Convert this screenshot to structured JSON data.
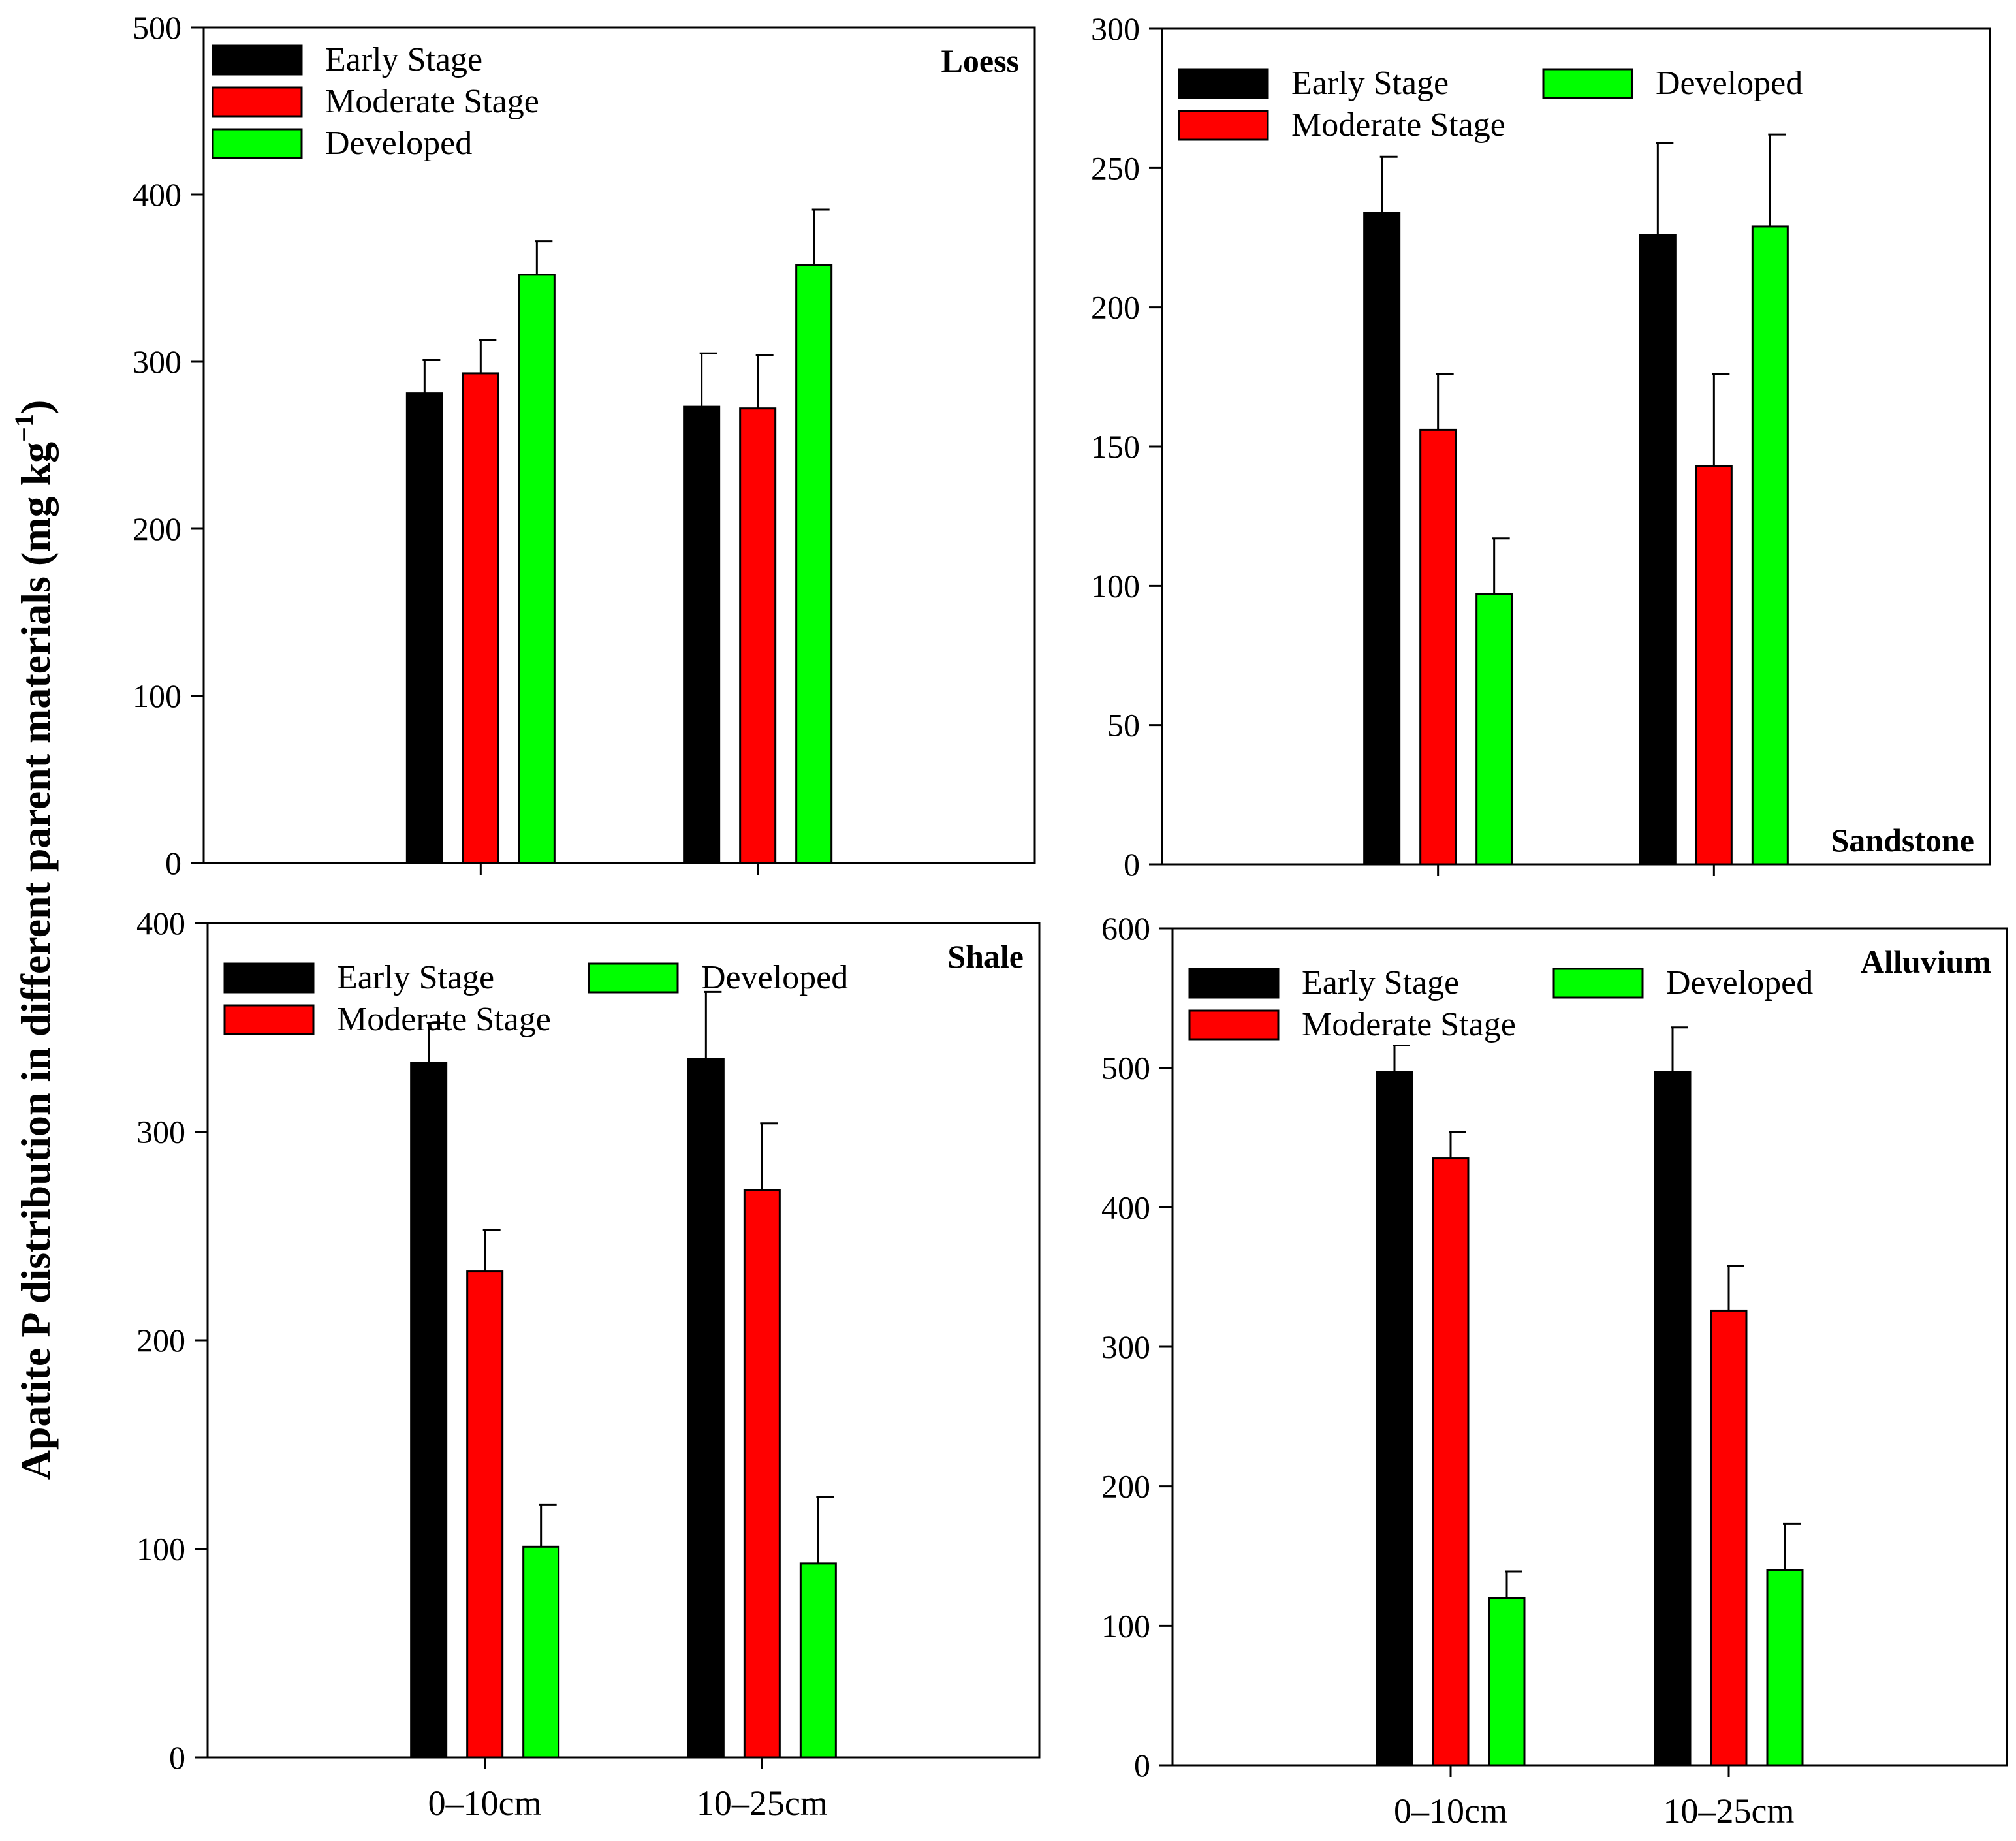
{
  "figure": {
    "y_axis_title": "Apatite P distribution in different parent materials (mg kg",
    "y_axis_title_sup": "−1",
    "y_axis_title_close": ")"
  },
  "chart_data": [
    {
      "type": "bar",
      "title": "Loess",
      "title_position": "top-right",
      "categories": [
        "0–10cm",
        "10–25cm"
      ],
      "show_category_labels": false,
      "ylim": [
        0,
        500
      ],
      "yticks": [
        0,
        100,
        200,
        300,
        400,
        500
      ],
      "series": [
        {
          "name": "Early Stage",
          "color": "#000000",
          "values": [
            281,
            273
          ],
          "errors": [
            20,
            32
          ]
        },
        {
          "name": "Moderate Stage",
          "color": "#ff0000",
          "values": [
            293,
            272
          ],
          "errors": [
            20,
            32
          ]
        },
        {
          "name": "Developed",
          "color": "#00ff00",
          "values": [
            352,
            358
          ],
          "errors": [
            20,
            33
          ]
        }
      ],
      "legend": {
        "layout": "column"
      }
    },
    {
      "type": "bar",
      "title": "Sandstone",
      "title_position": "bottom-right",
      "categories": [
        "0–10cm",
        "10–25cm"
      ],
      "show_category_labels": false,
      "ylim": [
        0,
        300
      ],
      "yticks": [
        0,
        50,
        100,
        150,
        200,
        250,
        300
      ],
      "series": [
        {
          "name": "Early Stage",
          "color": "#000000",
          "values": [
            234,
            226
          ],
          "errors": [
            20,
            33
          ]
        },
        {
          "name": "Moderate Stage",
          "color": "#ff0000",
          "values": [
            156,
            143
          ],
          "errors": [
            20,
            33
          ]
        },
        {
          "name": "Developed",
          "color": "#00ff00",
          "values": [
            97,
            229
          ],
          "errors": [
            20,
            33
          ]
        }
      ],
      "legend": {
        "layout": "two-column"
      }
    },
    {
      "type": "bar",
      "title": "Shale",
      "title_position": "top-right",
      "categories": [
        "0–10cm",
        "10–25cm"
      ],
      "show_category_labels": true,
      "ylim": [
        0,
        400
      ],
      "yticks": [
        0,
        100,
        200,
        300,
        400
      ],
      "series": [
        {
          "name": "Early Stage",
          "color": "#000000",
          "values": [
            333,
            335
          ],
          "errors": [
            19,
            32
          ]
        },
        {
          "name": "Moderate Stage",
          "color": "#ff0000",
          "values": [
            233,
            272
          ],
          "errors": [
            20,
            32
          ]
        },
        {
          "name": "Developed",
          "color": "#00ff00",
          "values": [
            101,
            93
          ],
          "errors": [
            20,
            32
          ]
        }
      ],
      "legend": {
        "layout": "two-column"
      }
    },
    {
      "type": "bar",
      "title": "Alluvium",
      "title_position": "top-right",
      "categories": [
        "0–10cm",
        "10–25cm"
      ],
      "show_category_labels": true,
      "ylim": [
        0,
        600
      ],
      "yticks": [
        0,
        100,
        200,
        300,
        400,
        500,
        600
      ],
      "series": [
        {
          "name": "Early Stage",
          "color": "#000000",
          "values": [
            497,
            497
          ],
          "errors": [
            19,
            32
          ]
        },
        {
          "name": "Moderate Stage",
          "color": "#ff0000",
          "values": [
            435,
            326
          ],
          "errors": [
            19,
            32
          ]
        },
        {
          "name": "Developed",
          "color": "#00ff00",
          "values": [
            120,
            140
          ],
          "errors": [
            19,
            33
          ]
        }
      ],
      "legend": {
        "layout": "two-column"
      }
    }
  ]
}
